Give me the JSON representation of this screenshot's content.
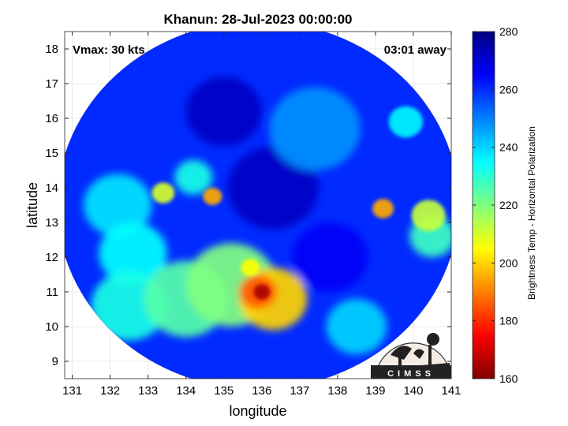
{
  "chart_data": {
    "type": "heatmap",
    "title": "Khanun: 28-Jul-2023 00:00:00",
    "xlabel": "longitude",
    "ylabel": "latitude",
    "xlim": [
      130.8,
      141
    ],
    "ylim": [
      8.5,
      18.5
    ],
    "x_ticks": [
      131,
      132,
      133,
      134,
      135,
      136,
      137,
      138,
      139,
      140,
      141
    ],
    "y_ticks": [
      9,
      10,
      11,
      12,
      13,
      14,
      15,
      16,
      17,
      18
    ],
    "grid": true,
    "annotations": {
      "vmax": "Vmax: 30 kts",
      "time_away": "03:01 away"
    },
    "swath": {
      "center_lon": 135.9,
      "center_lat": 13.5,
      "radius_deg": 5.3
    },
    "colorbar": {
      "label": "Brightness Temp - Horizontal Polarization",
      "range": [
        160,
        280
      ],
      "ticks": [
        160,
        180,
        200,
        220,
        240,
        260,
        280
      ],
      "colormap": "jet"
    },
    "features": [
      {
        "lon": 136.0,
        "lat": 11.0,
        "value": 165,
        "radius": 0.22
      },
      {
        "lon": 135.9,
        "lat": 11.0,
        "value": 185,
        "radius": 0.5
      },
      {
        "lon": 136.3,
        "lat": 10.8,
        "value": 200,
        "radius": 0.9
      },
      {
        "lon": 135.2,
        "lat": 11.2,
        "value": 220,
        "radius": 1.2
      },
      {
        "lon": 134.0,
        "lat": 10.8,
        "value": 225,
        "radius": 1.1
      },
      {
        "lon": 132.5,
        "lat": 10.6,
        "value": 232,
        "radius": 1.0
      },
      {
        "lon": 135.7,
        "lat": 11.7,
        "value": 205,
        "radius": 0.25
      },
      {
        "lon": 134.7,
        "lat": 13.75,
        "value": 195,
        "radius": 0.25
      },
      {
        "lon": 133.4,
        "lat": 13.85,
        "value": 210,
        "radius": 0.3
      },
      {
        "lon": 139.2,
        "lat": 13.4,
        "value": 195,
        "radius": 0.28
      },
      {
        "lon": 140.4,
        "lat": 13.2,
        "value": 212,
        "radius": 0.45
      },
      {
        "lon": 140.5,
        "lat": 12.6,
        "value": 228,
        "radius": 0.6
      },
      {
        "lon": 139.8,
        "lat": 15.9,
        "value": 236,
        "radius": 0.45
      },
      {
        "lon": 134.2,
        "lat": 14.3,
        "value": 232,
        "radius": 0.5
      },
      {
        "lon": 132.2,
        "lat": 13.5,
        "value": 238,
        "radius": 0.9
      },
      {
        "lon": 132.6,
        "lat": 12.1,
        "value": 235,
        "radius": 0.9
      },
      {
        "lon": 138.5,
        "lat": 10.0,
        "value": 240,
        "radius": 0.8
      },
      {
        "lon": 137.4,
        "lat": 15.7,
        "value": 248,
        "radius": 1.2
      },
      {
        "lon": 135.0,
        "lat": 16.2,
        "value": 272,
        "radius": 1.0
      },
      {
        "lon": 136.3,
        "lat": 14.0,
        "value": 272,
        "radius": 1.2
      },
      {
        "lon": 137.8,
        "lat": 12.0,
        "value": 266,
        "radius": 1.0
      }
    ],
    "background_value": 260
  },
  "logo": {
    "text": "CIMSS"
  }
}
